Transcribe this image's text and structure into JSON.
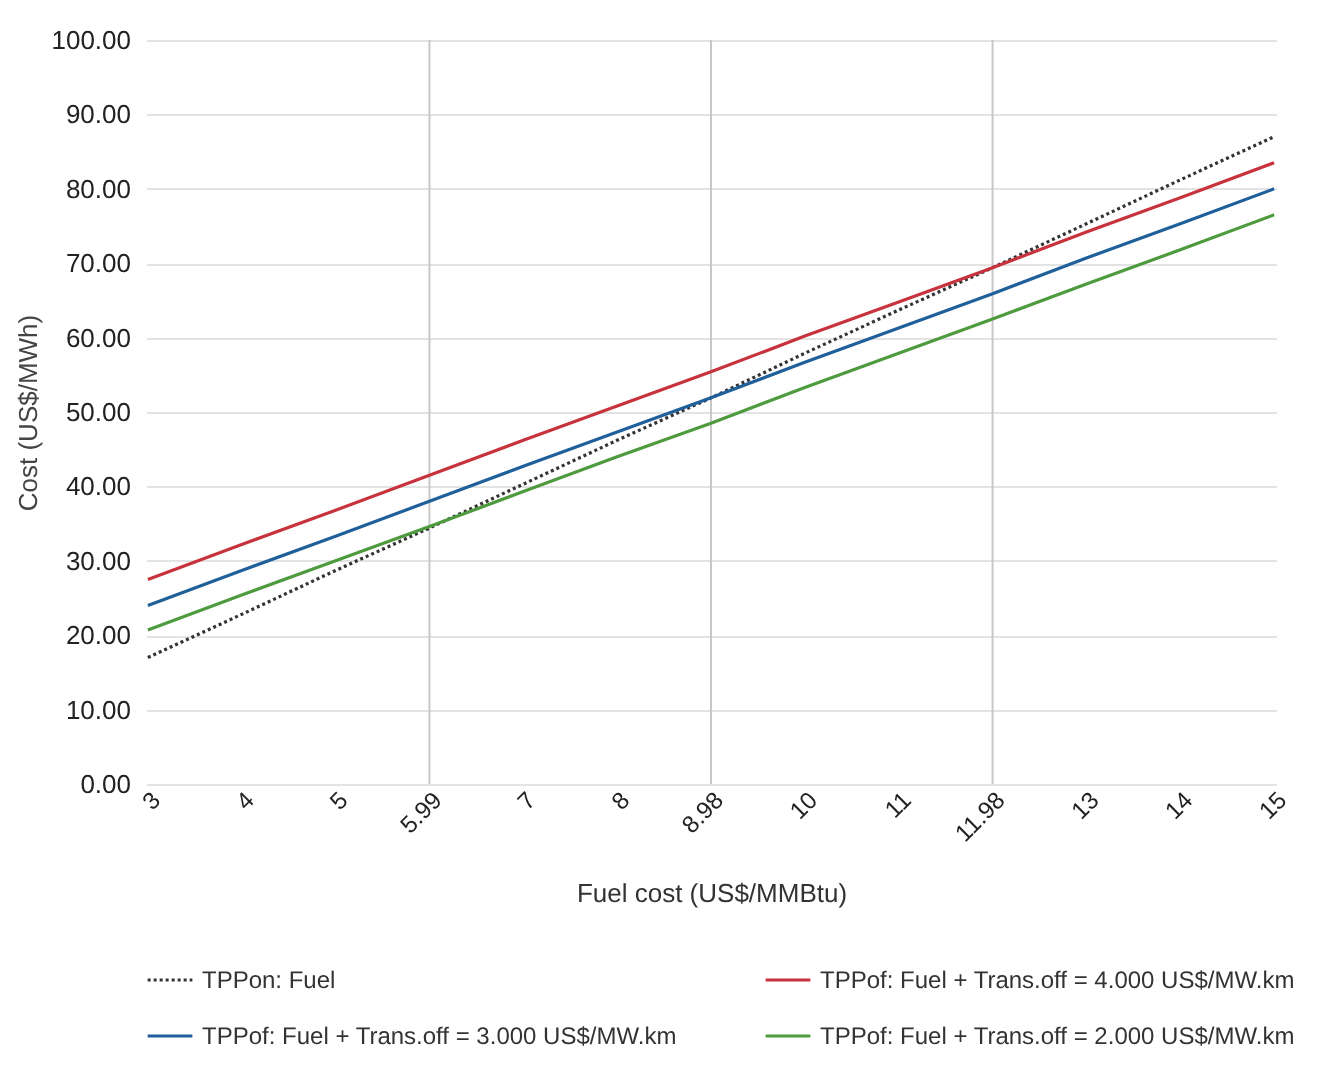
{
  "chart_data": {
    "type": "line",
    "xlabel": "Fuel cost (US$/MMBtu)",
    "ylabel": "Cost (US$/MWh)",
    "categories": [
      "3",
      "4",
      "5",
      "5.99",
      "7",
      "8",
      "8.98",
      "10",
      "11",
      "11.98",
      "13",
      "14",
      "15"
    ],
    "series": [
      {
        "name": "TPPon: Fuel",
        "color": "#333333",
        "line_style": "dotted",
        "values": [
          17,
          22.8,
          28.7,
          34.4,
          40.3,
          46.2,
          51.9,
          57.9,
          63.7,
          69.4,
          75.3,
          81.2,
          87
        ]
      },
      {
        "name": "TPPof: Fuel + Trans.off = 4.000 US$/MW.km",
        "color": "#c8323c",
        "line_style": "solid",
        "values": [
          27.5,
          32.2,
          36.8,
          41.5,
          46.2,
          50.8,
          55.4,
          60.2,
          64.8,
          69.4,
          74.2,
          78.8,
          83.5
        ]
      },
      {
        "name": "TPPof: Fuel + Trans.off = 3.000 US$/MW.km",
        "color": "#1f5f9a",
        "line_style": "solid",
        "values": [
          24,
          28.7,
          33.3,
          38,
          42.7,
          47.3,
          51.9,
          56.7,
          61.3,
          65.9,
          70.7,
          75.3,
          80
        ]
      },
      {
        "name": "TPPof: Fuel + Trans.off = 2.000 US$/MW.km",
        "color": "#4e9a3e",
        "line_style": "solid",
        "values": [
          20.7,
          25.4,
          30,
          34.6,
          39.3,
          44,
          48.5,
          53.3,
          57.9,
          62.5,
          67.2,
          71.8,
          76.5
        ]
      }
    ],
    "ylim": [
      0,
      100
    ],
    "yticks": [
      {
        "value": 0,
        "label": "0.00"
      },
      {
        "value": 10,
        "label": "10.00"
      },
      {
        "value": 20,
        "label": "20.00"
      },
      {
        "value": 30,
        "label": "30.00"
      },
      {
        "value": 40,
        "label": "40.00"
      },
      {
        "value": 50,
        "label": "50.00"
      },
      {
        "value": 60,
        "label": "60.00"
      },
      {
        "value": 70,
        "label": "70.00"
      },
      {
        "value": 80,
        "label": "80.00"
      },
      {
        "value": 90,
        "label": "90.00"
      },
      {
        "value": 100,
        "label": "100.00"
      }
    ],
    "ref_lines": [
      {
        "axis": "x",
        "value": "5.99",
        "color": "#c8c8c8"
      },
      {
        "axis": "x",
        "value": "8.98",
        "color": "#c8c8c8"
      },
      {
        "axis": "x",
        "value": "11.98",
        "color": "#c8c8c8"
      }
    ],
    "grid": "y",
    "legend": "bottom",
    "marker": "none"
  }
}
